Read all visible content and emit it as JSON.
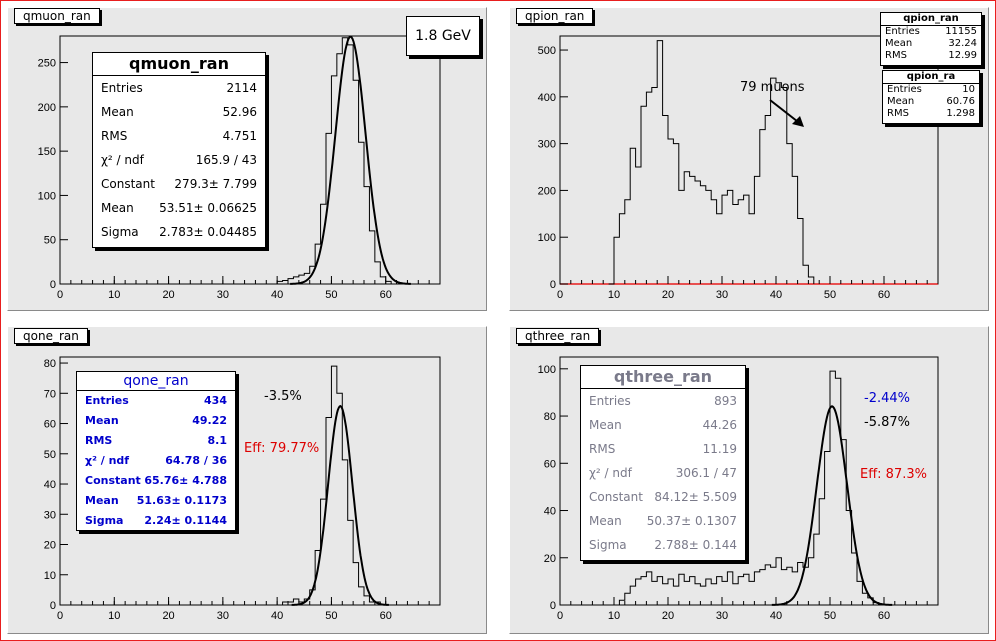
{
  "energy_label": "1.8 GeV",
  "colors": {
    "pad": "#e8e8e8",
    "frame": "#e81e1e",
    "blue": "#0000cc",
    "red": "#dd0000",
    "gray": "#7a7a8a"
  },
  "pads": [
    {
      "title": "qmuon_ran",
      "stats": {
        "name": "qmuon_ran",
        "rows": [
          {
            "label": "Entries",
            "value": "2114"
          },
          {
            "label": "Mean",
            "value": "52.96"
          },
          {
            "label": "RMS",
            "value": "4.751"
          },
          {
            "label": "χ² / ndf",
            "value": "165.9 / 43"
          },
          {
            "label": "Constant",
            "value": "279.3± 7.799"
          },
          {
            "label": "Mean",
            "value": "53.51± 0.06625"
          },
          {
            "label": "Sigma",
            "value": "2.783± 0.04485"
          }
        ]
      }
    },
    {
      "title": "qpion_ran",
      "stats_a": {
        "name": "qpion_ran",
        "rows": [
          {
            "label": "Entries",
            "value": "11155"
          },
          {
            "label": "Mean",
            "value": "32.24"
          },
          {
            "label": "RMS",
            "value": "12.99"
          }
        ]
      },
      "stats_b": {
        "name": "qpion_ra",
        "rows": [
          {
            "label": "Entries",
            "value": "10"
          },
          {
            "label": "Mean",
            "value": "60.76"
          },
          {
            "label": "RMS",
            "value": "1.298"
          }
        ]
      },
      "annotation": "79 muons"
    },
    {
      "title": "qone_ran",
      "stats": {
        "name": "qone_ran",
        "rows": [
          {
            "label": "Entries",
            "value": "434"
          },
          {
            "label": "Mean",
            "value": "49.22"
          },
          {
            "label": "RMS",
            "value": "8.1"
          },
          {
            "label": "χ² / ndf",
            "value": "64.78 / 36"
          },
          {
            "label": "Constant",
            "value": "65.76± 4.788"
          },
          {
            "label": "Mean",
            "value": "51.63± 0.1173"
          },
          {
            "label": "Sigma",
            "value": "2.24± 0.1144"
          }
        ]
      },
      "note1": "-3.5%",
      "eff": "Eff: 79.77%"
    },
    {
      "title": "qthree_ran",
      "stats": {
        "name": "qthree_ran",
        "rows": [
          {
            "label": "Entries",
            "value": "893"
          },
          {
            "label": "Mean",
            "value": "44.26"
          },
          {
            "label": "RMS",
            "value": "11.19"
          },
          {
            "label": "χ² / ndf",
            "value": "306.1 / 47"
          },
          {
            "label": "Constant",
            "value": "84.12± 5.509"
          },
          {
            "label": "Mean",
            "value": "50.37± 0.1307"
          },
          {
            "label": "Sigma",
            "value": "2.788± 0.144"
          }
        ]
      },
      "note1": "-2.44%",
      "note2": "-5.87%",
      "eff": "Eff: 87.3%"
    }
  ],
  "chart_data": [
    {
      "type": "histogram",
      "title": "qmuon_ran",
      "xlim": [
        0,
        70
      ],
      "ylim": [
        0,
        280
      ],
      "x_ticks": [
        0,
        10,
        20,
        30,
        40,
        50,
        60
      ],
      "y_ticks": [
        0,
        50,
        100,
        150,
        200,
        250
      ],
      "bin_start": 40,
      "bin_width": 1,
      "counts": [
        3,
        4,
        6,
        8,
        10,
        12,
        20,
        45,
        90,
        170,
        235,
        260,
        278,
        270,
        230,
        160,
        110,
        60,
        25,
        8,
        3
      ],
      "fit": {
        "constant": 279.3,
        "mean": 53.51,
        "sigma": 2.783
      }
    },
    {
      "type": "histogram",
      "title": "qpion_ran",
      "xlim": [
        0,
        70
      ],
      "ylim": [
        0,
        530
      ],
      "x_ticks": [
        0,
        10,
        20,
        30,
        40,
        50,
        60
      ],
      "y_ticks": [
        0,
        100,
        200,
        300,
        400,
        500
      ],
      "bin_start": 9,
      "bin_width": 1,
      "counts": [
        0,
        100,
        150,
        180,
        290,
        250,
        380,
        410,
        420,
        520,
        360,
        310,
        300,
        200,
        240,
        230,
        220,
        210,
        200,
        180,
        150,
        190,
        200,
        170,
        180,
        190,
        150,
        230,
        330,
        360,
        440,
        430,
        420,
        300,
        230,
        140,
        40,
        15
      ],
      "fit": null
    },
    {
      "type": "histogram",
      "title": "qone_ran",
      "xlim": [
        0,
        70
      ],
      "ylim": [
        0,
        82
      ],
      "x_ticks": [
        0,
        10,
        20,
        30,
        40,
        50,
        60
      ],
      "y_ticks": [
        0,
        10,
        20,
        30,
        40,
        50,
        60,
        70,
        80
      ],
      "bin_start": 40,
      "bin_width": 1,
      "counts": [
        0,
        1,
        1,
        2,
        1,
        2,
        5,
        18,
        35,
        62,
        79,
        70,
        48,
        28,
        14,
        6,
        3,
        1,
        1
      ],
      "fit": {
        "constant": 65.76,
        "mean": 51.63,
        "sigma": 2.24
      }
    },
    {
      "type": "histogram",
      "title": "qthree_ran",
      "xlim": [
        0,
        70
      ],
      "ylim": [
        0,
        105
      ],
      "x_ticks": [
        0,
        10,
        20,
        30,
        40,
        50,
        60
      ],
      "y_ticks": [
        0,
        20,
        40,
        60,
        80,
        100
      ],
      "bin_start": 10,
      "bin_width": 1,
      "counts": [
        0,
        2,
        5,
        8,
        11,
        12,
        14,
        10,
        12,
        9,
        11,
        8,
        13,
        10,
        12,
        9,
        8,
        11,
        9,
        12,
        10,
        14,
        9,
        12,
        13,
        10,
        14,
        15,
        17,
        16,
        20,
        15,
        16,
        14,
        18,
        16,
        20,
        30,
        45,
        65,
        99,
        96,
        70,
        40,
        22,
        10,
        5,
        3,
        1
      ],
      "fit": {
        "constant": 84.12,
        "mean": 50.37,
        "sigma": 2.788
      }
    }
  ]
}
